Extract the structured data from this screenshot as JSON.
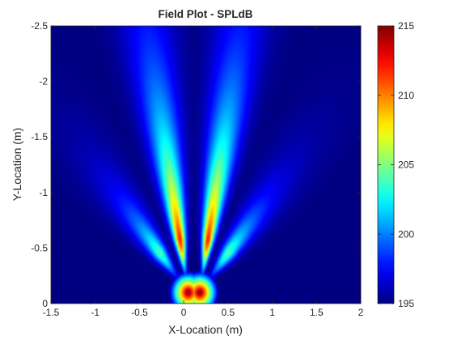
{
  "chart_data": {
    "type": "heatmap",
    "title": "Field Plot - SPLdB",
    "xlabel": "X-Location (m)",
    "ylabel": "Y-Location (m)",
    "xlim": [
      -1.5,
      2
    ],
    "ylim": [
      0,
      -2.5
    ],
    "x_ticks": [
      -1.5,
      -1,
      -0.5,
      0,
      0.5,
      1,
      1.5,
      2
    ],
    "x_tick_labels": [
      "-1.5",
      "-1",
      "-0.5",
      "0",
      "0.5",
      "1",
      "1.5",
      "2"
    ],
    "y_ticks": [
      -2.5,
      -2,
      -1.5,
      -1,
      -0.5,
      0
    ],
    "y_tick_labels": [
      "-2.5",
      "-2",
      "-1.5",
      "-1",
      "-0.5",
      "0"
    ],
    "colorbar": {
      "range": [
        195,
        215
      ],
      "ticks": [
        195,
        200,
        205,
        210,
        215
      ],
      "tick_labels": [
        "195",
        "200",
        "205",
        "210",
        "215"
      ],
      "colormap": "jet"
    },
    "source_points": [
      {
        "x": 0.05,
        "y": -0.1
      },
      {
        "x": 0.18,
        "y": -0.1
      }
    ],
    "lobes": [
      {
        "name": "main-left",
        "origin_x": 0.05,
        "angle_deg": -11,
        "peak_level": 209.5,
        "peak_range_m": 0.5,
        "length_m": 2.6
      },
      {
        "name": "main-right",
        "origin_x": 0.18,
        "angle_deg": 11,
        "peak_level": 209.5,
        "peak_range_m": 0.5,
        "length_m": 2.6
      },
      {
        "name": "side-left",
        "origin_x": 0.05,
        "angle_deg": -42,
        "peak_level": 201.5,
        "peak_range_m": 0.5,
        "length_m": 1.3
      },
      {
        "name": "side-right",
        "origin_x": 0.18,
        "angle_deg": 42,
        "peak_level": 201.5,
        "peak_range_m": 0.5,
        "length_m": 1.3
      }
    ],
    "background_level": 195,
    "grid": false
  }
}
